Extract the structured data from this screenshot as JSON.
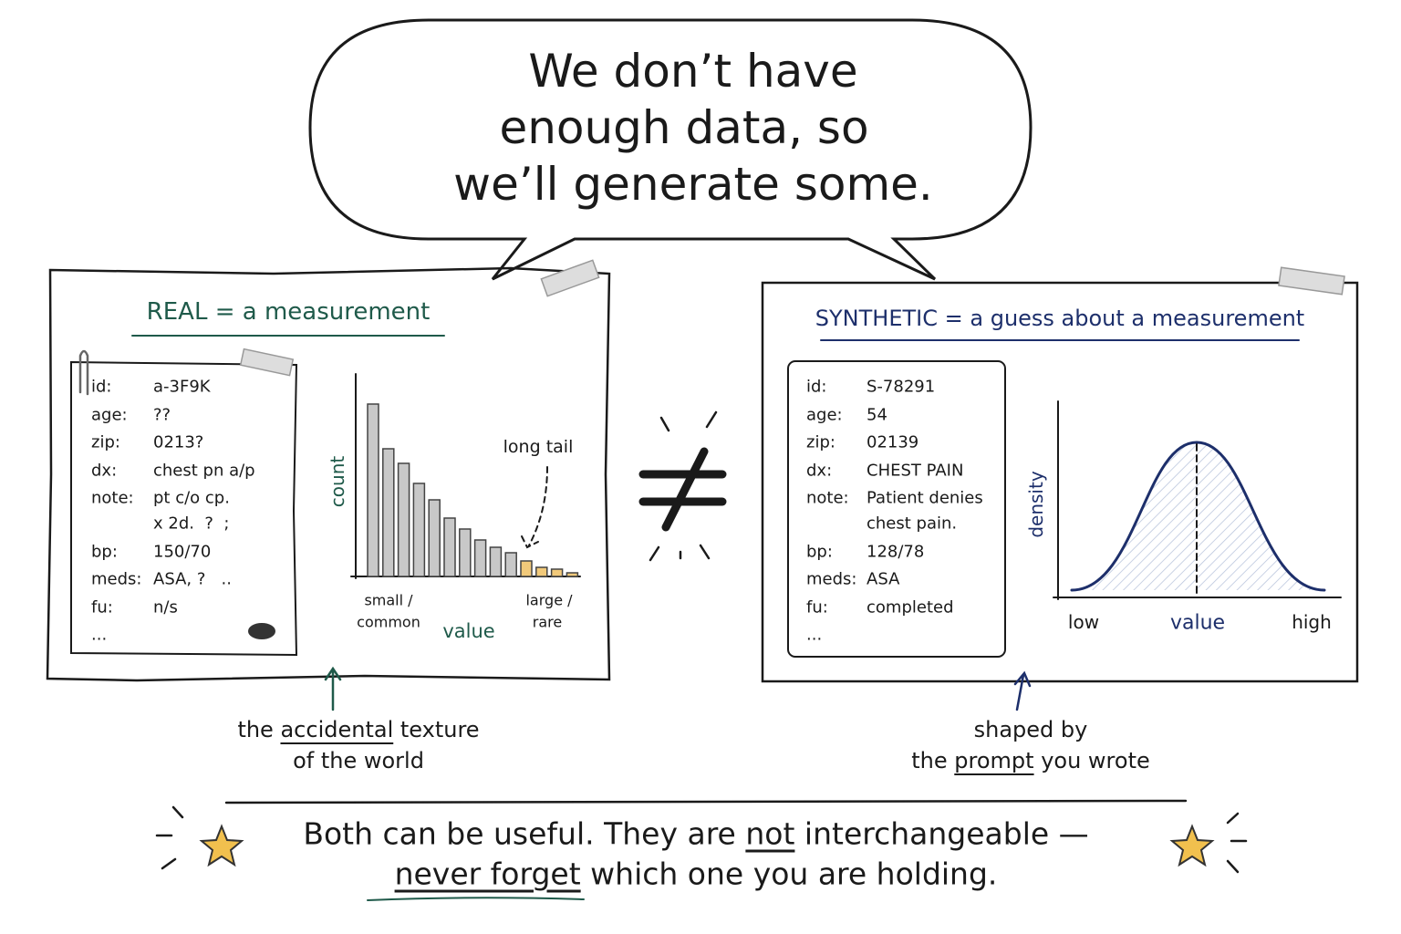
{
  "bubble": {
    "lines": [
      "We don’t have",
      "enough data, so",
      "we’ll generate some."
    ]
  },
  "real": {
    "title": "REAL = a measurement",
    "card": [
      {
        "key": "id:",
        "value": "a-3F9K"
      },
      {
        "key": "age:",
        "value": "??"
      },
      {
        "key": "zip:",
        "value": "0213?"
      },
      {
        "key": "dx:",
        "value": "chest pn a/p"
      },
      {
        "key": "note:",
        "value": "pt c/o cp.",
        "cont": "x 2d.  ?  ;"
      },
      {
        "key": "bp:",
        "value": "150/70"
      },
      {
        "key": "meds:",
        "value": "ASA, ?   .."
      },
      {
        "key": "fu:",
        "value": "n/s"
      },
      {
        "key": "..."
      }
    ],
    "histogram": {
      "values": [
        189,
        140,
        124,
        102,
        84,
        64,
        52,
        40,
        32,
        26,
        17,
        10,
        8,
        4
      ],
      "colors": [
        "#c8c8c8",
        "#c8c8c8",
        "#c8c8c8",
        "#c8c8c8",
        "#c8c8c8",
        "#c8c8c8",
        "#c8c8c8",
        "#c8c8c8",
        "#c8c8c8",
        "#c8c8c8",
        "#f1c97a",
        "#f1c97a",
        "#f1c97a",
        "#f1c97a"
      ],
      "y_label": "count",
      "x_label": "value",
      "left_label": [
        "small /",
        "common"
      ],
      "right_label": [
        "large /",
        "rare"
      ],
      "annotation": "long tail"
    },
    "caption": [
      [
        {
          "text": "the"
        },
        {
          "text": "accidental",
          "underline": true
        },
        {
          "text": "texture"
        }
      ],
      [
        {
          "text": "of the world"
        }
      ]
    ]
  },
  "synthetic": {
    "title": "SYNTHETIC = a guess about a measurement",
    "card": [
      {
        "key": "id:",
        "value": "S-78291"
      },
      {
        "key": "age:",
        "value": "54"
      },
      {
        "key": "zip:",
        "value": "02139"
      },
      {
        "key": "dx:",
        "value": "CHEST PAIN"
      },
      {
        "key": "note:",
        "value": "Patient denies",
        "cont": "chest pain."
      },
      {
        "key": "bp:",
        "value": "128/78"
      },
      {
        "key": "meds:",
        "value": "ASA"
      },
      {
        "key": "fu:",
        "value": "completed"
      },
      {
        "key": "..."
      }
    ],
    "density": {
      "y_label": "density",
      "x_label": "value",
      "low_label": "low",
      "high_label": "high"
    },
    "caption": [
      [
        {
          "text": "shaped by"
        }
      ],
      [
        {
          "text": "the"
        },
        {
          "text": "prompt",
          "underline": true
        },
        {
          "text": "you wrote"
        }
      ]
    ]
  },
  "footer": {
    "lines": [
      [
        {
          "text": "Both can be useful. They are"
        },
        {
          "text": "not",
          "underline": true
        },
        {
          "text": "interchangeable —"
        }
      ],
      [
        {
          "text": "never forget",
          "underline": true
        },
        {
          "text": "which one you are holding."
        }
      ]
    ]
  }
}
